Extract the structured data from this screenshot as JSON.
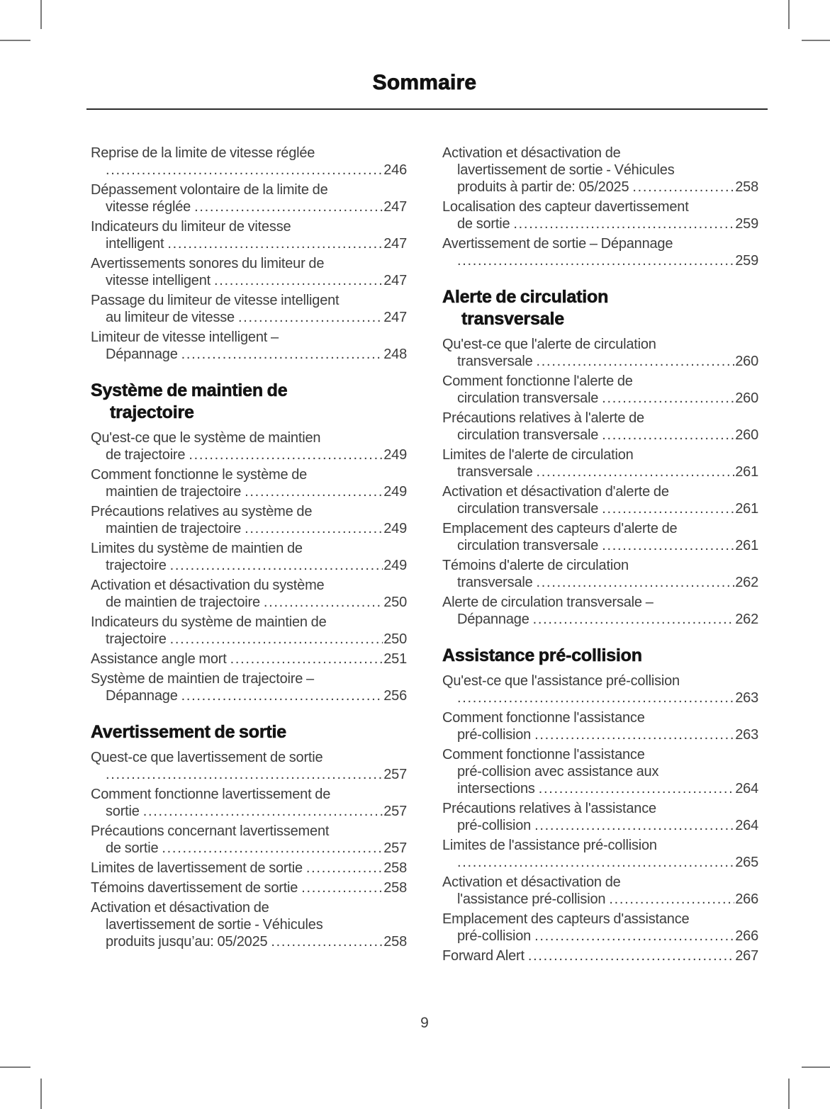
{
  "page": {
    "title": "Sommaire",
    "page_number": "9"
  },
  "colors": {
    "body_text": "#3d3d3d",
    "heading_text": "#141414",
    "rule": "#2b2b2b",
    "crop_mark": "#7b7b7b",
    "background": "#ffffff"
  },
  "toc": {
    "columns": [
      {
        "blocks": [
          {
            "kind": "entry",
            "pre": [
              "Reprise de la limite de vitesse réglée"
            ],
            "last": "",
            "page": "246"
          },
          {
            "kind": "entry",
            "pre": [
              "Dépassement volontaire de la limite de"
            ],
            "last": "vitesse réglée",
            "page": "247"
          },
          {
            "kind": "entry",
            "pre": [
              "Indicateurs du limiteur de vitesse"
            ],
            "last": "intelligent",
            "page": "247"
          },
          {
            "kind": "entry",
            "pre": [
              "Avertissements sonores du limiteur de"
            ],
            "last": "vitesse intelligent",
            "page": "247"
          },
          {
            "kind": "entry",
            "pre": [
              "Passage du limiteur de vitesse intelligent"
            ],
            "last": "au limiteur de vitesse",
            "page": "247"
          },
          {
            "kind": "entry",
            "pre": [
              "Limiteur de vitesse intelligent –"
            ],
            "last": "Dépannage",
            "page": "248"
          },
          {
            "kind": "heading",
            "lines": [
              "Système de maintien de",
              "trajectoire"
            ]
          },
          {
            "kind": "entry",
            "pre": [
              "Qu'est-ce que le système de maintien"
            ],
            "last": "de trajectoire",
            "page": "249"
          },
          {
            "kind": "entry",
            "pre": [
              "Comment fonctionne le système de"
            ],
            "last": "maintien de trajectoire",
            "page": "249"
          },
          {
            "kind": "entry",
            "pre": [
              "Précautions relatives au système de"
            ],
            "last": "maintien de trajectoire",
            "page": "249"
          },
          {
            "kind": "entry",
            "pre": [
              "Limites du système de maintien de"
            ],
            "last": "trajectoire",
            "page": "249"
          },
          {
            "kind": "entry",
            "pre": [
              "Activation et désactivation du système"
            ],
            "last": "de maintien de trajectoire",
            "page": "250"
          },
          {
            "kind": "entry",
            "pre": [
              "Indicateurs du système de maintien de"
            ],
            "last": "trajectoire",
            "page": "250"
          },
          {
            "kind": "entry",
            "pre": [],
            "last": "Assistance angle mort",
            "page": "251"
          },
          {
            "kind": "entry",
            "pre": [
              "Système de maintien de trajectoire –"
            ],
            "last": "Dépannage",
            "page": "256"
          },
          {
            "kind": "heading",
            "lines": [
              "Avertissement de sortie"
            ]
          },
          {
            "kind": "entry",
            "pre": [
              "Quest-ce que lavertissement de sortie"
            ],
            "last": "",
            "page": "257"
          },
          {
            "kind": "entry",
            "pre": [
              "Comment fonctionne lavertissement de"
            ],
            "last": "sortie",
            "page": "257"
          },
          {
            "kind": "entry",
            "pre": [
              "Précautions concernant lavertissement"
            ],
            "last": "de sortie",
            "page": "257"
          },
          {
            "kind": "entry",
            "pre": [],
            "last": "Limites de lavertissement de sortie",
            "page": "258"
          },
          {
            "kind": "entry",
            "pre": [],
            "last": "Témoins davertissement de sortie",
            "page": "258"
          },
          {
            "kind": "entry",
            "pre": [
              "Activation et désactivation de",
              "lavertissement de sortie - Véhicules"
            ],
            "last": "produits jusqu’au: 05/2025",
            "page": "258"
          }
        ]
      },
      {
        "blocks": [
          {
            "kind": "entry",
            "pre": [
              "Activation et désactivation de",
              "lavertissement de sortie - Véhicules"
            ],
            "last": "produits à partir de: 05/2025",
            "page": "258"
          },
          {
            "kind": "entry",
            "pre": [
              "Localisation des capteur davertissement"
            ],
            "last": "de sortie",
            "page": "259"
          },
          {
            "kind": "entry",
            "pre": [
              "Avertissement de sortie – Dépannage"
            ],
            "last": "",
            "page": "259"
          },
          {
            "kind": "heading",
            "lines": [
              "Alerte de circulation",
              "transversale"
            ]
          },
          {
            "kind": "entry",
            "pre": [
              "Qu'est-ce que l'alerte de circulation"
            ],
            "last": "transversale",
            "page": "260"
          },
          {
            "kind": "entry",
            "pre": [
              "Comment fonctionne l'alerte de"
            ],
            "last": "circulation transversale",
            "page": "260"
          },
          {
            "kind": "entry",
            "pre": [
              "Précautions relatives à l'alerte de"
            ],
            "last": "circulation transversale",
            "page": "260"
          },
          {
            "kind": "entry",
            "pre": [
              "Limites de l'alerte de circulation"
            ],
            "last": "transversale",
            "page": "261"
          },
          {
            "kind": "entry",
            "pre": [
              "Activation et désactivation d'alerte de"
            ],
            "last": "circulation transversale",
            "page": "261"
          },
          {
            "kind": "entry",
            "pre": [
              "Emplacement des capteurs d'alerte de"
            ],
            "last": "circulation transversale",
            "page": "261"
          },
          {
            "kind": "entry",
            "pre": [
              "Témoins d'alerte de circulation"
            ],
            "last": "transversale",
            "page": "262"
          },
          {
            "kind": "entry",
            "pre": [
              "Alerte de circulation transversale –"
            ],
            "last": "Dépannage",
            "page": "262"
          },
          {
            "kind": "heading",
            "lines": [
              "Assistance pré-collision"
            ]
          },
          {
            "kind": "entry",
            "pre": [
              "Qu'est-ce que l'assistance pré-collision"
            ],
            "last": "",
            "page": "263"
          },
          {
            "kind": "entry",
            "pre": [
              "Comment fonctionne l'assistance"
            ],
            "last": "pré-collision",
            "page": "263"
          },
          {
            "kind": "entry",
            "pre": [
              "Comment fonctionne l'assistance",
              "pré-collision avec assistance aux"
            ],
            "last": "intersections",
            "page": "264"
          },
          {
            "kind": "entry",
            "pre": [
              "Précautions relatives à l'assistance"
            ],
            "last": "pré-collision",
            "page": "264"
          },
          {
            "kind": "entry",
            "pre": [
              "Limites de l'assistance pré-collision"
            ],
            "last": "",
            "page": "265"
          },
          {
            "kind": "entry",
            "pre": [
              "Activation et désactivation de"
            ],
            "last": "l'assistance pré-collision",
            "page": "266"
          },
          {
            "kind": "entry",
            "pre": [
              "Emplacement des capteurs d'assistance"
            ],
            "last": "pré-collision",
            "page": "266"
          },
          {
            "kind": "entry",
            "pre": [],
            "last": "Forward Alert",
            "page": "267"
          }
        ]
      }
    ]
  }
}
